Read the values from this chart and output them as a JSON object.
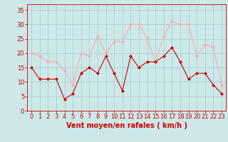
{
  "hours": [
    0,
    1,
    2,
    3,
    4,
    5,
    6,
    7,
    8,
    9,
    10,
    11,
    12,
    13,
    14,
    15,
    16,
    17,
    18,
    19,
    20,
    21,
    22,
    23
  ],
  "vent_moyen": [
    15,
    11,
    11,
    11,
    4,
    6,
    13,
    15,
    13,
    19,
    13,
    7,
    19,
    15,
    17,
    17,
    19,
    22,
    17,
    11,
    13,
    13,
    9,
    6
  ],
  "rafales": [
    20,
    19,
    17,
    17,
    14,
    9,
    20,
    19,
    26,
    20,
    24,
    24,
    30,
    30,
    25,
    17,
    26,
    31,
    30,
    30,
    19,
    23,
    22,
    9
  ],
  "bg_color": "#cce8e8",
  "grid_color": "#aad0d0",
  "line_moyen_color": "#cc0000",
  "line_rafales_color": "#ffaaaa",
  "marker_color_moyen": "#cc0000",
  "marker_color_rafales": "#ffaaaa",
  "xlabel": "Vent moyen/en rafales ( km/h )",
  "xlabel_color": "#cc0000",
  "tick_color": "#cc0000",
  "yticks": [
    0,
    5,
    10,
    15,
    20,
    25,
    30,
    35
  ],
  "ylim": [
    0,
    37
  ],
  "xlim": [
    -0.5,
    23.5
  ],
  "axis_label_size": 7,
  "tick_label_size": 6
}
